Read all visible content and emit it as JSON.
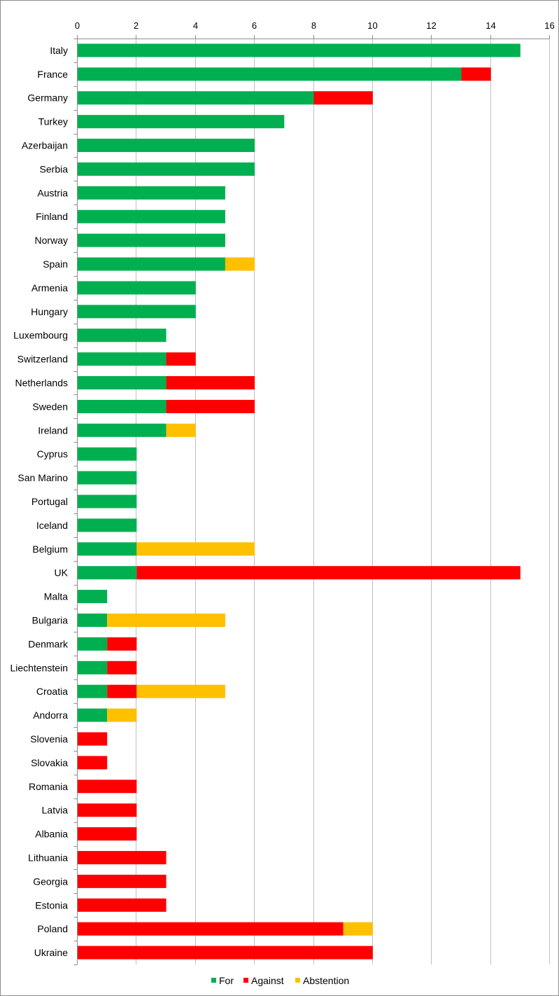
{
  "chart_data": {
    "type": "bar",
    "orientation": "horizontal",
    "stacked": true,
    "title": "",
    "xlabel": "",
    "ylabel": "",
    "xlim": [
      0,
      16
    ],
    "x_ticks": [
      0,
      2,
      4,
      6,
      8,
      10,
      12,
      14,
      16
    ],
    "x_axis_position": "top",
    "grid": "vertical major gridlines on",
    "legend_position": "bottom",
    "categories": [
      "Italy",
      "France",
      "Germany",
      "Turkey",
      "Azerbaijan",
      "Serbia",
      "Austria",
      "Finland",
      "Norway",
      "Spain",
      "Armenia",
      "Hungary",
      "Luxembourg",
      "Switzerland",
      "Netherlands",
      "Sweden",
      "Ireland",
      "Cyprus",
      "San Marino",
      "Portugal",
      "Iceland",
      "Belgium",
      "UK",
      "Malta",
      "Bulgaria",
      "Denmark",
      "Liechtenstein",
      "Croatia",
      "Andorra",
      "Slovenia",
      "Slovakia",
      "Romania",
      "Latvia",
      "Albania",
      "Lithuania",
      "Georgia",
      "Estonia",
      "Poland",
      "Ukraine"
    ],
    "series": [
      {
        "name": "For",
        "color": "#00b050",
        "values": [
          15,
          13,
          8,
          7,
          6,
          6,
          5,
          5,
          5,
          5,
          4,
          4,
          3,
          3,
          3,
          3,
          3,
          2,
          2,
          2,
          2,
          2,
          2,
          1,
          1,
          1,
          1,
          1,
          1,
          0,
          0,
          0,
          0,
          0,
          0,
          0,
          0,
          0,
          0
        ]
      },
      {
        "name": "Against",
        "color": "#ff0000",
        "values": [
          0,
          1,
          2,
          0,
          0,
          0,
          0,
          0,
          0,
          0,
          0,
          0,
          0,
          1,
          3,
          3,
          0,
          0,
          0,
          0,
          0,
          0,
          13,
          0,
          0,
          1,
          1,
          1,
          0,
          1,
          1,
          2,
          2,
          2,
          3,
          3,
          3,
          9,
          10
        ]
      },
      {
        "name": "Abstention",
        "color": "#ffc000",
        "values": [
          0,
          0,
          0,
          0,
          0,
          0,
          0,
          0,
          0,
          1,
          0,
          0,
          0,
          0,
          0,
          0,
          1,
          0,
          0,
          0,
          0,
          4,
          0,
          0,
          4,
          0,
          0,
          3,
          1,
          0,
          0,
          0,
          0,
          0,
          0,
          0,
          0,
          1,
          0
        ]
      }
    ]
  }
}
